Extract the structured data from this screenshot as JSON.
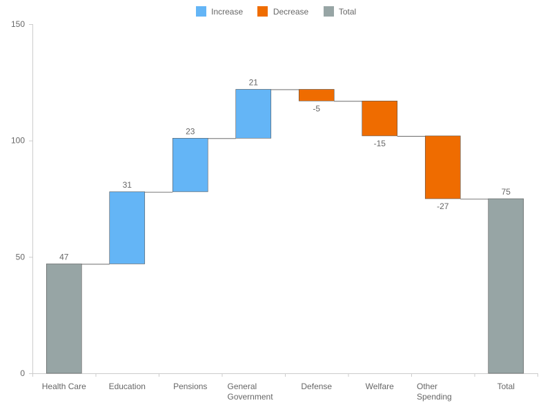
{
  "legend": {
    "increase_label": "Increase",
    "decrease_label": "Decrease",
    "total_label": "Total"
  },
  "colors": {
    "increase": "#64b5f6",
    "decrease": "#ef6c00",
    "total": "#97a5a5",
    "bar_border": "#555555",
    "axis": "#cccccc",
    "text": "#666666"
  },
  "chart_data": {
    "type": "bar",
    "subtype": "waterfall",
    "title": "",
    "xlabel": "",
    "ylabel": "",
    "ylim": [
      0,
      150
    ],
    "yticks": [
      0,
      50,
      100,
      150
    ],
    "grid": false,
    "legend_position": "top-center",
    "categories": [
      [
        "Health Care"
      ],
      [
        "Education"
      ],
      [
        "Pensions"
      ],
      [
        "General",
        "Government"
      ],
      [
        "Defense"
      ],
      [
        "Welfare"
      ],
      [
        "Other",
        "Spending"
      ],
      [
        "Total"
      ]
    ],
    "values": [
      47,
      31,
      23,
      21,
      -5,
      -15,
      -27,
      75
    ],
    "kinds": [
      "total",
      "increase",
      "increase",
      "increase",
      "decrease",
      "decrease",
      "decrease",
      "total"
    ],
    "data_labels": [
      "47",
      "31",
      "23",
      "21",
      "-5",
      "-15",
      "-27",
      "75"
    ]
  }
}
